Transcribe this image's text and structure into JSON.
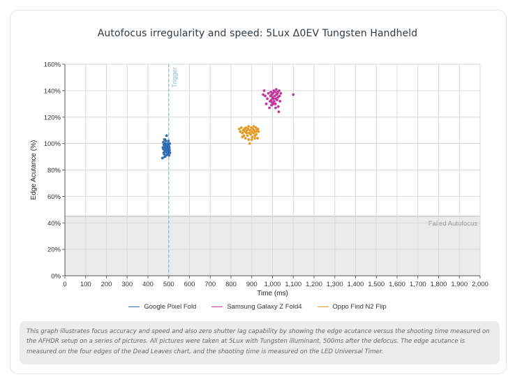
{
  "chart_data": {
    "type": "scatter",
    "title": "Autofocus irregularity and speed: 5Lux Δ0EV Tungsten Handheld",
    "xlabel": "Time (ms)",
    "ylabel": "Edge Acutance (%)",
    "xlim": [
      0,
      2000
    ],
    "ylim": [
      0,
      160
    ],
    "x_ticks": [
      0,
      100,
      200,
      300,
      400,
      500,
      600,
      700,
      800,
      900,
      1000,
      1100,
      1200,
      1300,
      1400,
      1500,
      1600,
      1700,
      1800,
      1900,
      2000
    ],
    "x_tick_labels": [
      "0",
      "100",
      "200",
      "300",
      "400",
      "500",
      "600",
      "700",
      "800",
      "900",
      "1,000",
      "1,100",
      "1,200",
      "1,300",
      "1,400",
      "1,500",
      "1,600",
      "1,700",
      "1,800",
      "1,900",
      "2,000"
    ],
    "y_ticks": [
      0,
      20,
      40,
      60,
      80,
      100,
      120,
      140,
      160
    ],
    "y_tick_labels": [
      "0%",
      "20%",
      "40%",
      "60%",
      "80%",
      "100%",
      "120%",
      "140%",
      "160%"
    ],
    "grid": true,
    "legend_position": "bottom",
    "trigger": {
      "x": 500,
      "label": "Trigger",
      "color": "#8db6dc"
    },
    "failed_region": {
      "y_max": 45,
      "label": "Failed Autofocus",
      "color": "#ebebeb"
    },
    "series": [
      {
        "name": "Google Pixel Fold",
        "color": "#2f6db3",
        "points": [
          [
            470,
            89
          ],
          [
            472,
            97
          ],
          [
            474,
            101
          ],
          [
            476,
            93
          ],
          [
            477,
            99
          ],
          [
            478,
            92
          ],
          [
            479,
            103
          ],
          [
            480,
            95
          ],
          [
            481,
            90
          ],
          [
            482,
            98
          ],
          [
            483,
            100
          ],
          [
            484,
            94
          ],
          [
            485,
            97
          ],
          [
            486,
            102
          ],
          [
            487,
            96
          ],
          [
            488,
            91
          ],
          [
            489,
            99
          ],
          [
            490,
            106
          ],
          [
            491,
            93
          ],
          [
            492,
            98
          ],
          [
            493,
            95
          ],
          [
            494,
            100
          ],
          [
            495,
            97
          ],
          [
            496,
            92
          ],
          [
            497,
            99
          ],
          [
            498,
            96
          ],
          [
            499,
            102
          ],
          [
            500,
            94
          ],
          [
            501,
            98
          ],
          [
            502,
            91
          ],
          [
            503,
            97
          ],
          [
            504,
            95
          ],
          [
            505,
            100
          ],
          [
            506,
            93
          ],
          [
            474,
            96
          ],
          [
            478,
            99
          ],
          [
            482,
            103
          ],
          [
            486,
            95
          ],
          [
            490,
            97
          ],
          [
            494,
            99
          ],
          [
            498,
            93
          ],
          [
            502,
            96
          ]
        ]
      },
      {
        "name": "Samsung Galaxy Z Fold4",
        "color": "#c0369b",
        "points": [
          [
            955,
            137
          ],
          [
            960,
            140
          ],
          [
            965,
            136
          ],
          [
            970,
            130
          ],
          [
            975,
            134
          ],
          [
            980,
            138
          ],
          [
            985,
            127
          ],
          [
            988,
            132
          ],
          [
            990,
            136
          ],
          [
            992,
            139
          ],
          [
            994,
            133
          ],
          [
            996,
            137
          ],
          [
            998,
            131
          ],
          [
            1000,
            135
          ],
          [
            1002,
            138
          ],
          [
            1004,
            134
          ],
          [
            1006,
            140
          ],
          [
            1008,
            132
          ],
          [
            1010,
            136
          ],
          [
            1012,
            139
          ],
          [
            1014,
            130
          ],
          [
            1016,
            134
          ],
          [
            1018,
            141
          ],
          [
            1020,
            137
          ],
          [
            1022,
            133
          ],
          [
            1024,
            138
          ],
          [
            1026,
            135
          ],
          [
            1028,
            128
          ],
          [
            1030,
            124
          ],
          [
            1032,
            140
          ],
          [
            1034,
            136
          ],
          [
            1036,
            132
          ],
          [
            1040,
            138
          ],
          [
            1100,
            137
          ],
          [
            995,
            129
          ],
          [
            1005,
            130
          ],
          [
            1015,
            127
          ],
          [
            1025,
            139
          ]
        ]
      },
      {
        "name": "Oppo Find N2 Flip",
        "color": "#e59a24",
        "points": [
          [
            840,
            111
          ],
          [
            845,
            109
          ],
          [
            850,
            112
          ],
          [
            855,
            108
          ],
          [
            860,
            110
          ],
          [
            862,
            106
          ],
          [
            865,
            111
          ],
          [
            868,
            109
          ],
          [
            870,
            104
          ],
          [
            872,
            112
          ],
          [
            875,
            108
          ],
          [
            878,
            110
          ],
          [
            880,
            106
          ],
          [
            882,
            111
          ],
          [
            885,
            113
          ],
          [
            888,
            108
          ],
          [
            890,
            100
          ],
          [
            892,
            110
          ],
          [
            895,
            107
          ],
          [
            898,
            112
          ],
          [
            900,
            109
          ],
          [
            902,
            105
          ],
          [
            905,
            111
          ],
          [
            908,
            108
          ],
          [
            910,
            113
          ],
          [
            912,
            110
          ],
          [
            915,
            104
          ],
          [
            918,
            109
          ],
          [
            920,
            112
          ],
          [
            922,
            107
          ],
          [
            925,
            110
          ],
          [
            928,
            104
          ],
          [
            930,
            111
          ],
          [
            932,
            109
          ],
          [
            855,
            105
          ],
          [
            885,
            103
          ],
          [
            900,
            103
          ],
          [
            915,
            106
          ]
        ]
      }
    ]
  },
  "caption": "This graph illustrates focus accuracy and speed and also zero shutter lag capability by showing the edge acutance versus the shooting time measured on the AFHDR setup on a series of pictures. All pictures were taken at 5Lux with Tungsten illuminant, 500ms after the defocus. The edge acutance is measured on the four edges of the Dead Leaves chart, and the shooting time is measured on the LED Universal Timer."
}
